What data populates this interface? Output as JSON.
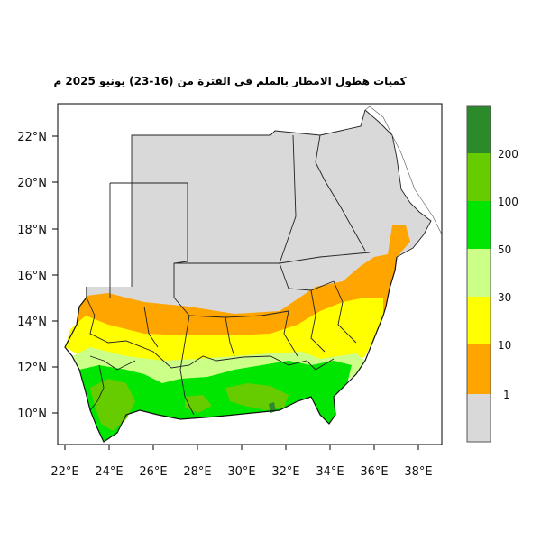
{
  "title": "كميات هطول الامطار بالملم في الفترة من (16-23) يونيو 2025 م",
  "axes": {
    "lat_ticks": [
      "22°N",
      "20°N",
      "18°N",
      "16°N",
      "14°N",
      "12°N",
      "10°N"
    ],
    "lon_ticks": [
      "22°E",
      "24°E",
      "26°E",
      "28°E",
      "30°E",
      "32°E",
      "34°E",
      "36°E",
      "38°E"
    ]
  },
  "legend": {
    "labels": [
      "200",
      "100",
      "50",
      "30",
      "10",
      "1"
    ],
    "colors": [
      "#2b8b2b",
      "#66cc00",
      "#00e600",
      "#ccff88",
      "#ffff00",
      "#ffa500",
      "#d9d9d9"
    ]
  },
  "map_colors": {
    "no_rain": "#d9d9d9",
    "border": "#222222"
  }
}
